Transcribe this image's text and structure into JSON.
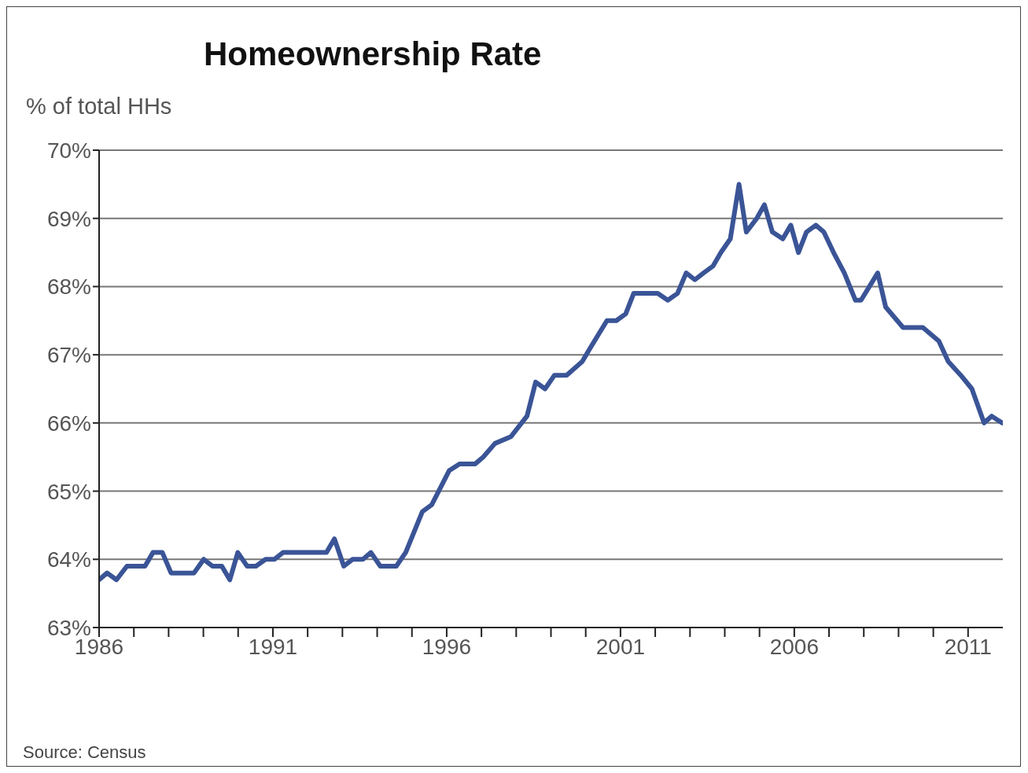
{
  "chart_data": {
    "type": "line",
    "title": "Homeownership Rate",
    "ylabel": "% of total HHs",
    "annotations": [
      "Source: Census"
    ],
    "x": [
      1986.0,
      1986.23,
      1986.5,
      1986.8,
      1987.32,
      1987.55,
      1987.82,
      1988.07,
      1988.73,
      1989.01,
      1989.26,
      1989.53,
      1989.76,
      1989.99,
      1990.26,
      1990.51,
      1990.79,
      1991.04,
      1991.29,
      1992.54,
      1992.77,
      1993.04,
      1993.29,
      1993.59,
      1993.82,
      1994.09,
      1994.55,
      1994.82,
      1995.3,
      1995.57,
      1996.07,
      1996.37,
      1996.82,
      1997.05,
      1997.39,
      1997.85,
      1998.31,
      1998.56,
      1998.83,
      1999.1,
      1999.45,
      1999.9,
      2000.13,
      2000.61,
      2000.88,
      2001.15,
      2001.38,
      2002.07,
      2002.36,
      2002.64,
      2002.89,
      2003.14,
      2003.39,
      2003.66,
      2003.89,
      2004.16,
      2004.41,
      2004.62,
      2004.92,
      2005.14,
      2005.37,
      2005.67,
      2005.9,
      2006.12,
      2006.35,
      2006.62,
      2006.85,
      2007.13,
      2007.44,
      2007.76,
      2007.92,
      2008.4,
      2008.63,
      2009.13,
      2009.7,
      2010.16,
      2010.43,
      2010.79,
      2011.11,
      2011.46,
      2011.68,
      2011.98
    ],
    "values": [
      63.7,
      63.8,
      63.7,
      63.9,
      63.9,
      64.1,
      64.1,
      63.8,
      63.8,
      64.0,
      63.9,
      63.9,
      63.7,
      64.1,
      63.9,
      63.9,
      64.0,
      64.0,
      64.1,
      64.1,
      64.3,
      63.9,
      64.0,
      64.0,
      64.1,
      63.9,
      63.9,
      64.1,
      64.7,
      64.8,
      65.3,
      65.4,
      65.4,
      65.5,
      65.7,
      65.8,
      66.1,
      66.6,
      66.5,
      66.7,
      66.7,
      66.9,
      67.1,
      67.5,
      67.5,
      67.6,
      67.9,
      67.9,
      67.8,
      67.9,
      68.2,
      68.1,
      68.2,
      68.3,
      68.5,
      68.7,
      69.5,
      68.8,
      69.0,
      69.2,
      68.8,
      68.7,
      68.9,
      68.5,
      68.8,
      68.9,
      68.8,
      68.5,
      68.2,
      67.8,
      67.8,
      68.2,
      67.7,
      67.4,
      67.4,
      67.2,
      66.9,
      66.7,
      66.5,
      66.0,
      66.1,
      66.0
    ],
    "color": "#3a5496",
    "line_style": "solid",
    "xlim": [
      1986,
      2012
    ],
    "xticks": [
      1986,
      {
        "value": 1987,
        "label": null
      },
      {
        "value": 1988,
        "label": null
      },
      {
        "value": 1989,
        "label": null
      },
      {
        "value": 1990,
        "label": null
      },
      1991,
      {
        "value": 1992,
        "label": null
      },
      {
        "value": 1993,
        "label": null
      },
      {
        "value": 1994,
        "label": null
      },
      {
        "value": 1995,
        "label": null
      },
      1996,
      {
        "value": 1997,
        "label": null
      },
      {
        "value": 1998,
        "label": null
      },
      {
        "value": 1999,
        "label": null
      },
      {
        "value": 2000,
        "label": null
      },
      2001,
      {
        "value": 2002,
        "label": null
      },
      {
        "value": 2003,
        "label": null
      },
      {
        "value": 2004,
        "label": null
      },
      {
        "value": 2005,
        "label": null
      },
      2006,
      {
        "value": 2007,
        "label": null
      },
      {
        "value": 2008,
        "label": null
      },
      {
        "value": 2009,
        "label": null
      },
      {
        "value": 2010,
        "label": null
      },
      2011
    ],
    "ylim": [
      63,
      70
    ],
    "yticks": [
      {
        "value": 63,
        "label": "63%"
      },
      {
        "value": 64,
        "label": "64%"
      },
      {
        "value": 65,
        "label": "65%"
      },
      {
        "value": 66,
        "label": "66%"
      },
      {
        "value": 67,
        "label": "67%"
      },
      {
        "value": 68,
        "label": "68%"
      },
      {
        "value": 69,
        "label": "69%"
      },
      {
        "value": 70,
        "label": "70%"
      }
    ],
    "grid": "y"
  }
}
